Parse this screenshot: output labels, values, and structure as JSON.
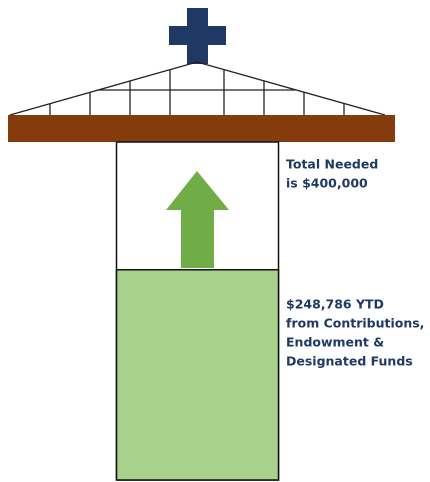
{
  "goal": {
    "value": 400000,
    "label": [
      "Total Needed",
      "is $400,000"
    ]
  },
  "raised": {
    "value": 248786,
    "label": [
      "$248,786 YTD",
      "from Contributions,",
      "Endowment &",
      "Designated Funds"
    ]
  }
}
